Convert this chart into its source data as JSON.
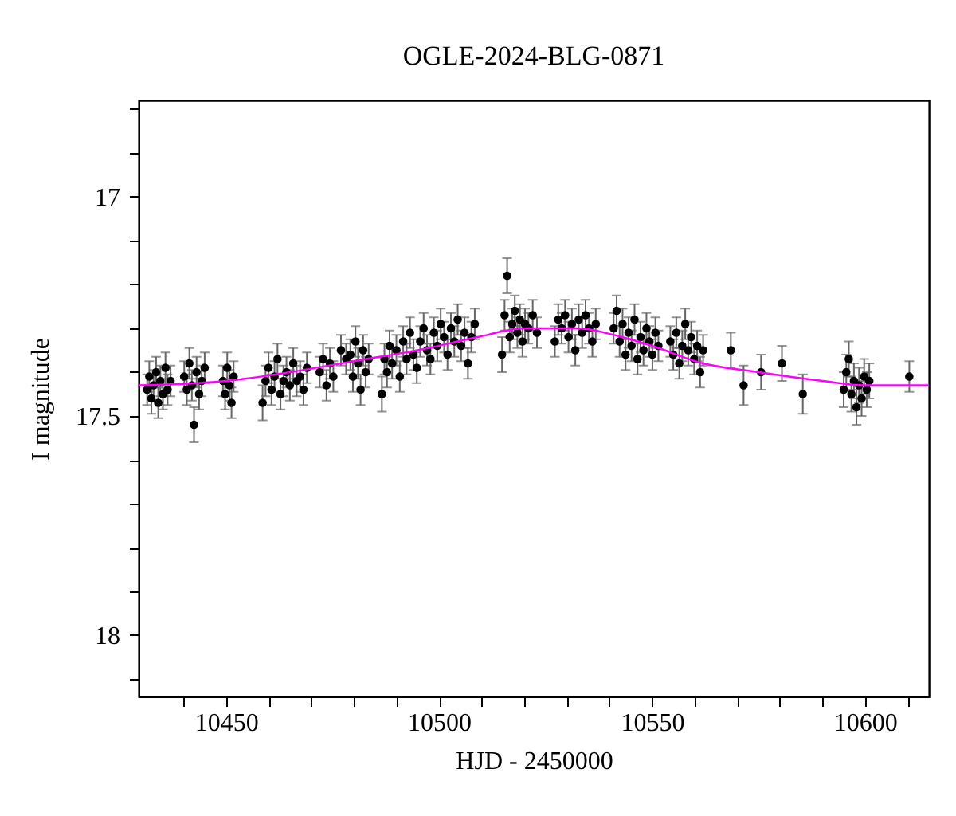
{
  "chart_data": {
    "type": "scatter",
    "title": "OGLE-2024-BLG-0871",
    "xlabel": "HJD - 2450000",
    "ylabel": "I magnitude",
    "xlim": [
      10429.5,
      10615
    ],
    "ylim": [
      18.14,
      16.78
    ],
    "xticks": [
      {
        "value": 10440,
        "label": null
      },
      10450,
      {
        "value": 10460,
        "label": null
      },
      {
        "value": 10470,
        "label": null
      },
      {
        "value": 10480,
        "label": null
      },
      {
        "value": 10490,
        "label": null
      },
      10500,
      {
        "value": 10510,
        "label": null
      },
      {
        "value": 10520,
        "label": null
      },
      {
        "value": 10530,
        "label": null
      },
      {
        "value": 10540,
        "label": null
      },
      10550,
      {
        "value": 10560,
        "label": null
      },
      {
        "value": 10570,
        "label": null
      },
      {
        "value": 10580,
        "label": null
      },
      {
        "value": 10590,
        "label": null
      },
      10600,
      {
        "value": 10610,
        "label": null
      }
    ],
    "yticks": [
      {
        "value": 16.8,
        "label": null
      },
      {
        "value": 16.9,
        "label": null
      },
      17,
      {
        "value": 17.1,
        "label": null
      },
      {
        "value": 17.2,
        "label": null
      },
      {
        "value": 17.3,
        "label": null
      },
      {
        "value": 17.4,
        "label": null
      },
      17.5,
      {
        "value": 17.6,
        "label": null
      },
      {
        "value": 17.7,
        "label": null
      },
      {
        "value": 17.8,
        "label": null
      },
      {
        "value": 17.9,
        "label": null
      },
      18,
      {
        "value": 18.1,
        "label": null
      }
    ],
    "grid": false,
    "marker": "circle",
    "series": [
      {
        "type": "scatter",
        "color": "#000000",
        "x": [
          10431.5,
          10432.0,
          10432.5,
          10433.0,
          10433.6,
          10434.1,
          10434.6,
          10435.2,
          10435.8,
          10436.3,
          10437.0,
          10440.2,
          10440.8,
          10441.4,
          10442.0,
          10442.5,
          10443.1,
          10443.7,
          10444.3,
          10445.0,
          10449.3,
          10449.8,
          10450.3,
          10450.8,
          10451.3,
          10451.8,
          10458.6,
          10459.3,
          10460.0,
          10460.7,
          10461.4,
          10462.1,
          10462.8,
          10463.5,
          10464.2,
          10465.0,
          10465.8,
          10466.6,
          10467.4,
          10468.2,
          10469.0,
          10472.0,
          10472.8,
          10473.6,
          10474.4,
          10475.2,
          10477.0,
          10478.2,
          10479.2,
          10479.8,
          10480.4,
          10481.0,
          10481.6,
          10482.2,
          10482.8,
          10483.5,
          10486.6,
          10487.2,
          10487.8,
          10488.4,
          10489.0,
          10490.0,
          10490.8,
          10491.6,
          10492.4,
          10493.2,
          10494.0,
          10494.8,
          10495.6,
          10496.4,
          10497.2,
          10498.0,
          10498.8,
          10499.6,
          10500.4,
          10501.2,
          10502.0,
          10502.8,
          10503.6,
          10504.4,
          10505.2,
          10506.0,
          10506.8,
          10507.6,
          10508.4,
          10514.8,
          10515.4,
          10516.0,
          10516.6,
          10517.2,
          10517.8,
          10518.4,
          10519.0,
          10519.6,
          10520.2,
          10521.0,
          10522.0,
          10523.0,
          10527.2,
          10528.0,
          10528.8,
          10529.6,
          10530.4,
          10531.2,
          10532.0,
          10532.8,
          10533.6,
          10534.4,
          10535.2,
          10536.0,
          10536.8,
          10541.0,
          10541.7,
          10542.4,
          10543.1,
          10543.8,
          10544.5,
          10545.2,
          10545.9,
          10546.6,
          10547.3,
          10548.0,
          10548.7,
          10549.4,
          10550.1,
          10550.8,
          10551.5,
          10554.3,
          10555.0,
          10555.7,
          10556.4,
          10557.1,
          10557.8,
          10558.5,
          10559.2,
          10559.9,
          10560.6,
          10561.3,
          10562.0,
          10568.5,
          10571.5,
          10575.6,
          10580.5,
          10585.4,
          10595.0,
          10595.6,
          10596.2,
          10596.8,
          10597.4,
          10598.0,
          10598.6,
          10599.2,
          10599.8,
          10600.4,
          10601.0,
          10610.4
        ],
        "values": [
          17.44,
          17.41,
          17.46,
          17.43,
          17.4,
          17.47,
          17.42,
          17.45,
          17.39,
          17.44,
          17.42,
          17.41,
          17.44,
          17.38,
          17.43,
          17.52,
          17.4,
          17.45,
          17.42,
          17.39,
          17.42,
          17.45,
          17.39,
          17.43,
          17.47,
          17.41,
          17.47,
          17.42,
          17.39,
          17.44,
          17.41,
          17.37,
          17.45,
          17.42,
          17.4,
          17.43,
          17.38,
          17.42,
          17.41,
          17.44,
          17.39,
          17.4,
          17.37,
          17.43,
          17.38,
          17.41,
          17.35,
          17.37,
          17.36,
          17.41,
          17.33,
          17.38,
          17.44,
          17.35,
          17.4,
          17.37,
          17.45,
          17.37,
          17.4,
          17.34,
          17.38,
          17.35,
          17.41,
          17.33,
          17.37,
          17.31,
          17.36,
          17.39,
          17.33,
          17.3,
          17.35,
          17.37,
          17.31,
          17.34,
          17.29,
          17.32,
          17.36,
          17.3,
          17.33,
          17.28,
          17.34,
          17.31,
          17.38,
          17.32,
          17.29,
          17.36,
          17.27,
          17.18,
          17.32,
          17.29,
          17.26,
          17.31,
          17.28,
          17.33,
          17.29,
          17.3,
          17.27,
          17.31,
          17.33,
          17.28,
          17.3,
          17.27,
          17.32,
          17.29,
          17.35,
          17.28,
          17.31,
          17.27,
          17.3,
          17.33,
          17.29,
          17.3,
          17.26,
          17.33,
          17.29,
          17.36,
          17.31,
          17.34,
          17.28,
          17.37,
          17.32,
          17.35,
          17.3,
          17.33,
          17.36,
          17.31,
          17.34,
          17.33,
          17.36,
          17.31,
          17.38,
          17.34,
          17.29,
          17.35,
          17.32,
          17.37,
          17.34,
          17.4,
          17.35,
          17.35,
          17.43,
          17.4,
          17.38,
          17.45,
          17.44,
          17.4,
          17.37,
          17.45,
          17.42,
          17.48,
          17.43,
          17.46,
          17.41,
          17.44,
          17.42,
          17.41
        ],
        "errors": [
          0.035,
          0.035,
          0.035,
          0.035,
          0.035,
          0.035,
          0.035,
          0.035,
          0.035,
          0.035,
          0.035,
          0.035,
          0.035,
          0.035,
          0.035,
          0.04,
          0.035,
          0.035,
          0.035,
          0.035,
          0.035,
          0.035,
          0.035,
          0.035,
          0.035,
          0.035,
          0.04,
          0.035,
          0.035,
          0.035,
          0.035,
          0.035,
          0.035,
          0.035,
          0.035,
          0.035,
          0.035,
          0.035,
          0.035,
          0.035,
          0.035,
          0.035,
          0.035,
          0.035,
          0.035,
          0.035,
          0.035,
          0.035,
          0.035,
          0.035,
          0.035,
          0.035,
          0.035,
          0.035,
          0.035,
          0.035,
          0.04,
          0.035,
          0.035,
          0.035,
          0.035,
          0.035,
          0.035,
          0.035,
          0.035,
          0.035,
          0.035,
          0.035,
          0.035,
          0.035,
          0.035,
          0.035,
          0.035,
          0.035,
          0.035,
          0.035,
          0.035,
          0.035,
          0.035,
          0.035,
          0.035,
          0.035,
          0.035,
          0.035,
          0.035,
          0.04,
          0.035,
          0.04,
          0.035,
          0.035,
          0.035,
          0.035,
          0.035,
          0.035,
          0.035,
          0.035,
          0.035,
          0.035,
          0.035,
          0.035,
          0.035,
          0.035,
          0.035,
          0.035,
          0.035,
          0.035,
          0.035,
          0.035,
          0.035,
          0.035,
          0.035,
          0.035,
          0.035,
          0.035,
          0.035,
          0.035,
          0.035,
          0.035,
          0.035,
          0.035,
          0.035,
          0.035,
          0.035,
          0.035,
          0.035,
          0.035,
          0.035,
          0.035,
          0.035,
          0.035,
          0.035,
          0.035,
          0.035,
          0.035,
          0.035,
          0.035,
          0.035,
          0.035,
          0.035,
          0.04,
          0.045,
          0.04,
          0.04,
          0.045,
          0.04,
          0.04,
          0.04,
          0.04,
          0.04,
          0.04,
          0.04,
          0.04,
          0.04,
          0.04,
          0.04,
          0.035
        ]
      },
      {
        "type": "line",
        "color": "#ff00ff",
        "marker": "none",
        "x": [
          10429.5,
          10450,
          10465,
          10483,
          10495,
          10509,
          10520,
          10532,
          10543,
          10550,
          10562,
          10575,
          10590,
          10600,
          10615
        ],
        "values": [
          17.43,
          17.42,
          17.4,
          17.37,
          17.35,
          17.32,
          17.3,
          17.3,
          17.32,
          17.34,
          17.38,
          17.4,
          17.42,
          17.43,
          17.43
        ]
      }
    ]
  }
}
